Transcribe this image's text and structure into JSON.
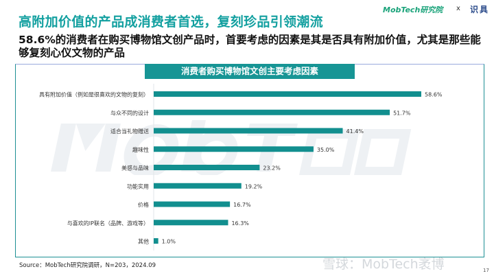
{
  "header": {
    "title": "高附加价值的产品成消费者首选，复刻珍品引领潮流",
    "subtitle": "58.6%的消费者在购买博物馆文创产品时，首要考虑的因素是其是否具有附加价值，尤其是那些能够复刻心仪文物的产品",
    "logo": "MobTech研究院",
    "separator": "x",
    "partner_logo": "识具"
  },
  "chart_data": {
    "type": "bar",
    "orientation": "horizontal",
    "title": "消费者购买博物馆文创主要考虑因素",
    "categories": [
      "具有附加价值（例如是很喜欢的文物的复刻）",
      "与众不同的设计",
      "适合当礼物赠送",
      "趣味性",
      "美感与品味",
      "功能实用",
      "价格",
      "与喜欢的IP联名（品牌、游戏等）",
      "其他"
    ],
    "values": [
      58.6,
      51.7,
      41.4,
      35.0,
      23.2,
      19.2,
      16.7,
      16.3,
      1.0
    ],
    "value_labels": [
      "58.6%",
      "51.7%",
      "41.4%",
      "35.0%",
      "23.2%",
      "19.2%",
      "16.7%",
      "16.3%",
      "1.0%"
    ],
    "unit": "%",
    "xlim": [
      0,
      60
    ],
    "grid": false,
    "color": "#128f8f"
  },
  "watermark": "MobTech袤博",
  "footer": {
    "source": "Source：MobTech研究院调研，N=203，2024.09",
    "xueqiu": "雪球：MobTech袤博",
    "page": "17"
  }
}
